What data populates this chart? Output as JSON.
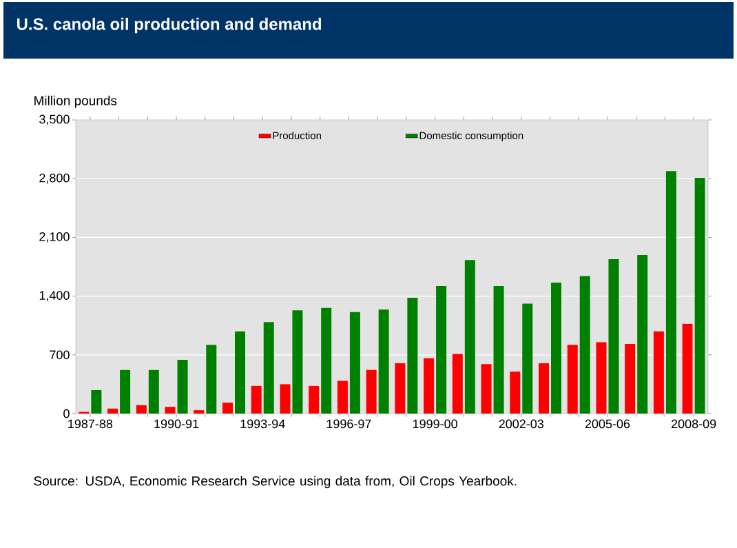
{
  "chart_data": {
    "type": "bar",
    "title": "U.S. canola oil production and demand",
    "ylabel": "Million pounds",
    "categories": [
      "1987-88",
      null,
      null,
      "1990-91",
      null,
      null,
      "1993-94",
      null,
      null,
      "1996-97",
      null,
      null,
      "1999-00",
      null,
      null,
      "2002-03",
      null,
      null,
      "2005-06",
      null,
      null,
      "2008-09"
    ],
    "series": [
      {
        "name": "Production",
        "color": "#ff0000",
        "values": [
          20,
          60,
          100,
          80,
          40,
          130,
          330,
          350,
          330,
          390,
          520,
          600,
          660,
          710,
          590,
          500,
          600,
          820,
          850,
          830,
          980,
          1070
        ]
      },
      {
        "name": "Domestic consumption",
        "color": "#008000",
        "values": [
          280,
          520,
          520,
          640,
          820,
          980,
          1090,
          1230,
          1260,
          1210,
          1240,
          1380,
          1520,
          1830,
          1520,
          1310,
          1560,
          1640,
          1840,
          1890,
          2890,
          2810
        ]
      }
    ],
    "ylim": [
      0,
      3500
    ],
    "yticks": [
      {
        "value": 0,
        "label": "0"
      },
      {
        "value": 700,
        "label": "700"
      },
      {
        "value": 1400,
        "label": "1,400"
      },
      {
        "value": 2100,
        "label": "2,100"
      },
      {
        "value": 2800,
        "label": "2,800"
      },
      {
        "value": 3500,
        "label": "3,500"
      }
    ],
    "grid": "y",
    "legend": "top",
    "annotations": [
      "Source: USDA, Economic Research Service using data from, Oil Crops Yearbook."
    ]
  }
}
